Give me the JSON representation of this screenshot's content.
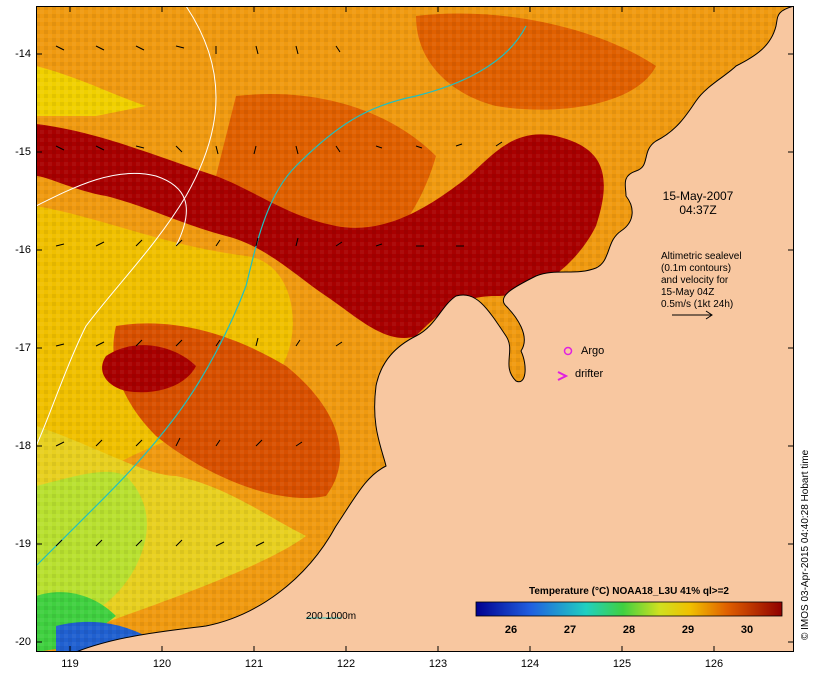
{
  "map": {
    "lon_ticks": [
      "119",
      "120",
      "121",
      "122",
      "123",
      "124",
      "125",
      "126"
    ],
    "lat_ticks": [
      "-14",
      "-15",
      "-16",
      "-17",
      "-18",
      "-19",
      "-20"
    ],
    "lon_range": [
      118.6,
      126.7
    ],
    "lat_range": [
      -20.1,
      -13.7
    ]
  },
  "annotations": {
    "date": "15-May-2007",
    "time": "04:37Z",
    "altimetry_lines": [
      "Altimetric sealevel",
      "(0.1m contours)",
      "and velocity for",
      "15-May 04Z",
      "0.5m/s (1kt 24h)"
    ],
    "argo_label": "Argo",
    "drifter_label": "drifter",
    "scale_label": "200  1000m"
  },
  "colorbar": {
    "title": "Temperature (°C) NOAA18_L3U 41% ql>=2",
    "ticks": [
      "26",
      "27",
      "28",
      "29",
      "30"
    ],
    "range": [
      25.2,
      30.8
    ]
  },
  "credit": "© IMOS 03-Apr-2015 04:40:28 Hobart time",
  "colors": {
    "land": "#f8c7a0",
    "hot": "#a80000",
    "warm": "#e06000",
    "orange": "#f09a10",
    "yellow": "#f0d000",
    "lime": "#b8e030",
    "green": "#40d040",
    "cyan_line": "#20c0c0",
    "argo": "#e020e0"
  }
}
